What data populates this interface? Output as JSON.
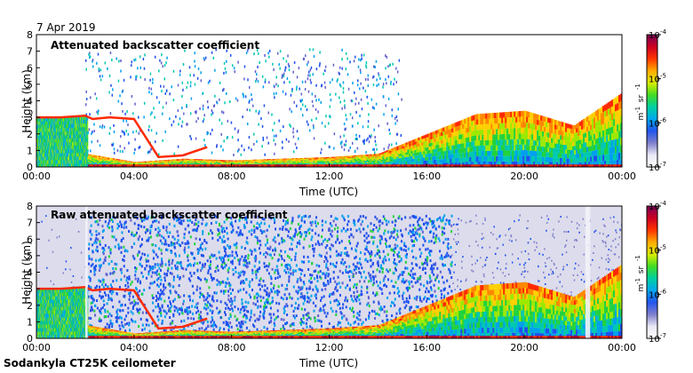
{
  "header": {
    "date": "7 Apr 2019"
  },
  "footer": {
    "site": "Sodankyla CT25K ceilometer"
  },
  "colorbar": {
    "tick_labels": [
      "10",
      "10",
      "10",
      "10"
    ],
    "tick_exponents": [
      "-4",
      "-5",
      "-6",
      "-7"
    ],
    "unit_m": "m",
    "unit_m_exp": "-1",
    "unit_sr": "sr",
    "unit_sr_exp": "-1",
    "gradient": [
      "#ffffff",
      "#e8e8f5",
      "#7f7fcc",
      "#2255ee",
      "#00a8ee",
      "#00d0a0",
      "#44dd22",
      "#ddee00",
      "#ffaa00",
      "#ff3300",
      "#cc0022",
      "#770055"
    ]
  },
  "chart_data": [
    {
      "type": "heatmap",
      "title": "Attenuated backscatter coefficient",
      "xlabel": "Time (UTC)",
      "ylabel": "Height (km)",
      "x_ticks": [
        "00:00",
        "04:00",
        "08:00",
        "12:00",
        "16:00",
        "20:00",
        "00:00"
      ],
      "y_ticks": [
        "0",
        "1",
        "2",
        "3",
        "4",
        "5",
        "6",
        "7",
        "8"
      ],
      "ylim": [
        0,
        8
      ],
      "color_scale": "log",
      "color_range": [
        1e-07,
        0.0001
      ],
      "layers": [
        {
          "kind": "cloud_top_height_km",
          "x_hours": [
            0,
            1,
            2,
            2.3,
            3,
            4,
            5,
            6,
            7
          ],
          "values": [
            3.0,
            3.0,
            3.1,
            2.9,
            3.0,
            2.9,
            0.6,
            0.7,
            1.2
          ]
        },
        {
          "kind": "boundary_layer_top_km",
          "x_hours": [
            0,
            2,
            4,
            6,
            8,
            10,
            12,
            14,
            16,
            18,
            20,
            22,
            24
          ],
          "values": [
            0.8,
            0.8,
            0.3,
            0.5,
            0.4,
            0.5,
            0.6,
            0.8,
            2.0,
            3.2,
            3.4,
            2.5,
            4.5
          ]
        },
        {
          "kind": "sparse_signal_top_km",
          "x_hours": [
            2,
            4,
            6,
            8,
            10,
            12,
            14,
            15
          ],
          "values": [
            7.0,
            7.0,
            7.2,
            7.3,
            7.3,
            7.3,
            7.0,
            7.0
          ]
        }
      ]
    },
    {
      "type": "heatmap",
      "title": "Raw attenuated backscatter coefficient",
      "xlabel": "Time (UTC)",
      "ylabel": "Height (km)",
      "x_ticks": [
        "00:00",
        "04:00",
        "08:00",
        "12:00",
        "16:00",
        "20:00",
        "00:00"
      ],
      "y_ticks": [
        "0",
        "1",
        "2",
        "3",
        "4",
        "5",
        "6",
        "7",
        "8"
      ],
      "ylim": [
        0,
        8
      ],
      "color_scale": "log",
      "color_range": [
        1e-07,
        0.0001
      ],
      "layers": [
        {
          "kind": "noise_band_km",
          "x_hours": [
            2.1,
            17
          ],
          "values": [
            0.5,
            7.5
          ]
        },
        {
          "kind": "gap_hours",
          "x_hours": [
            2.0,
            22.5
          ],
          "values": [
            2.1,
            22.7
          ]
        }
      ]
    }
  ]
}
